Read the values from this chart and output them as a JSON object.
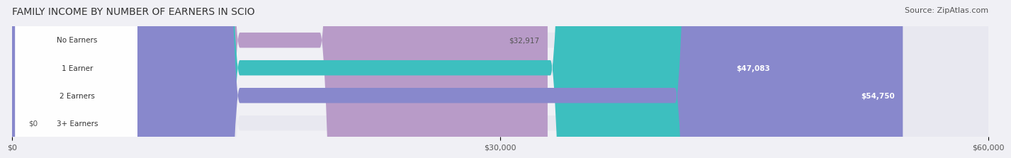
{
  "title": "FAMILY INCOME BY NUMBER OF EARNERS IN SCIO",
  "source": "Source: ZipAtlas.com",
  "categories": [
    "No Earners",
    "1 Earner",
    "2 Earners",
    "3+ Earners"
  ],
  "values": [
    32917,
    47083,
    54750,
    0
  ],
  "bar_colors": [
    "#b89bc8",
    "#3dbfbf",
    "#8888cc",
    "#f4a0b5"
  ],
  "label_colors": [
    "#555555",
    "#ffffff",
    "#ffffff",
    "#555555"
  ],
  "value_labels": [
    "$32,917",
    "$47,083",
    "$54,750",
    "$0"
  ],
  "xlim": [
    0,
    60000
  ],
  "xtick_values": [
    0,
    30000,
    60000
  ],
  "xtick_labels": [
    "$0",
    "$30,000",
    "$60,000"
  ],
  "background_color": "#f0f0f5",
  "bar_background_color": "#e8e8f0",
  "title_fontsize": 10,
  "source_fontsize": 8
}
